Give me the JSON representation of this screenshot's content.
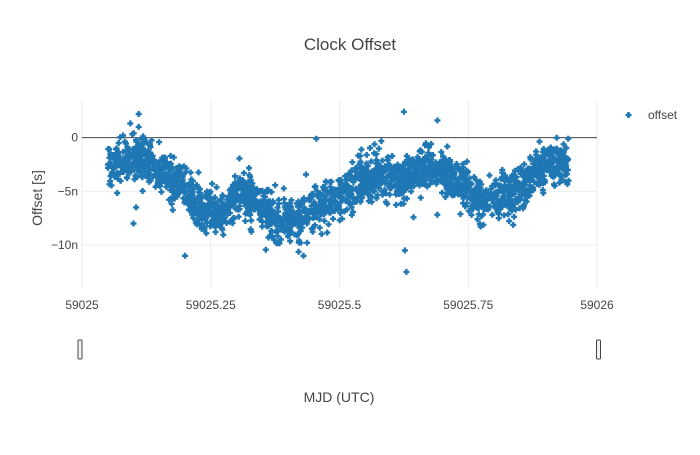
{
  "chart_data": {
    "type": "scatter",
    "title": "Clock Offset",
    "xlabel": "MJD (UTC)",
    "ylabel": "Offset [s]",
    "xlim": [
      59025,
      59026
    ],
    "ylim": [
      -1.4e-08,
      3.5e-09
    ],
    "x_ticks": [
      59025,
      59025.25,
      59025.5,
      59025.75,
      59026
    ],
    "x_tick_labels": [
      "59025",
      "59025.25",
      "59025.5",
      "59025.75",
      "59026"
    ],
    "y_ticks": [
      0,
      -5e-09,
      -1e-08
    ],
    "y_tick_labels": [
      "0",
      "−5n",
      "−10n"
    ],
    "grid": true,
    "zero_line": true,
    "legend_position": "top-right",
    "marker": "cross",
    "series": [
      {
        "name": "offset",
        "color": "#1f77b4",
        "trend": {
          "x_range": [
            59025.05,
            59025.945
          ],
          "knots_x": [
            59025.05,
            59025.08,
            59025.11,
            59025.15,
            59025.19,
            59025.23,
            59025.27,
            59025.31,
            59025.34,
            59025.38,
            59025.42,
            59025.46,
            59025.5,
            59025.54,
            59025.58,
            59025.62,
            59025.66,
            59025.7,
            59025.74,
            59025.78,
            59025.82,
            59025.86,
            59025.9,
            59025.945
          ],
          "knots_y": [
            -2.8e-09,
            -2.2e-09,
            -2e-09,
            -3e-09,
            -4e-09,
            -6.5e-09,
            -7e-09,
            -5e-09,
            -6e-09,
            -7.5e-09,
            -7.5e-09,
            -6.5e-09,
            -5.5e-09,
            -4e-09,
            -3.5e-09,
            -4e-09,
            -2.8e-09,
            -3.2e-09,
            -4.5e-09,
            -6e-09,
            -5.5e-09,
            -4e-09,
            -2.5e-09,
            -2.2e-09
          ],
          "noise_sd": 1e-09,
          "count": 2200
        },
        "outliers": {
          "x": [
            59025.11,
            59025.11,
            59025.105,
            59025.455,
            59025.625,
            59025.627,
            59025.63,
            59025.69,
            59025.43,
            59025.2,
            59025.1
          ],
          "y": [
            2.2e-09,
            1e-09,
            -6.5e-09,
            -1e-10,
            2.4e-09,
            -1.05e-08,
            -1.25e-08,
            1.6e-09,
            -1.1e-08,
            -1.1e-08,
            -8e-09
          ]
        }
      }
    ]
  }
}
